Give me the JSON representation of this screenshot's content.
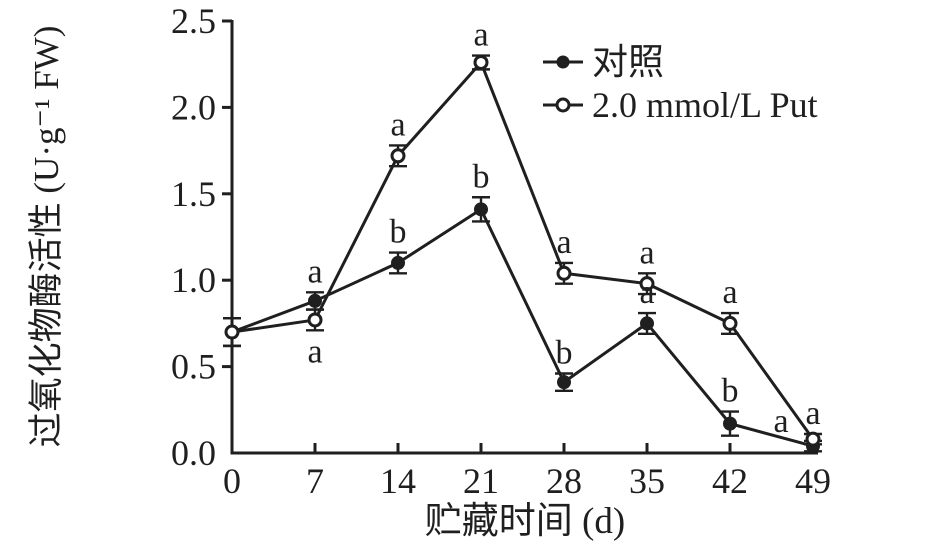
{
  "chart_data": {
    "type": "line",
    "title": "",
    "xlabel": "贮藏时间 (d)",
    "ylabel": "过氧化物酶活性 (U·g⁻¹ FW)",
    "x": [
      0,
      7,
      14,
      21,
      28,
      35,
      42,
      49
    ],
    "xtick_labels": [
      "0",
      "7",
      "14",
      "21",
      "28",
      "35",
      "42",
      "49"
    ],
    "yticks": [
      0.0,
      0.5,
      1.0,
      1.5,
      2.0,
      2.5
    ],
    "ytick_labels": [
      "0.0",
      "0.5",
      "1.0",
      "1.5",
      "2.0",
      "2.5"
    ],
    "ylim": [
      0.0,
      2.5
    ],
    "xlim": [
      0,
      49
    ],
    "grid": false,
    "line_color": "#1f1f1f",
    "background_color": "#ffffff",
    "legend_position": "top-right-inside",
    "series": [
      {
        "name": "对照",
        "marker": "filled-circle",
        "values": [
          0.7,
          0.88,
          1.1,
          1.41,
          0.41,
          0.75,
          0.17,
          0.04
        ],
        "errors": [
          0.08,
          0.05,
          0.06,
          0.07,
          0.05,
          0.06,
          0.07,
          0.03
        ],
        "letters": [
          null,
          {
            "t": "a",
            "pos": "above"
          },
          {
            "t": "b",
            "pos": "above"
          },
          {
            "t": "b",
            "pos": "above"
          },
          {
            "t": "b",
            "pos": "above"
          },
          {
            "t": "a",
            "pos": "above"
          },
          {
            "t": "b",
            "pos": "above"
          },
          {
            "t": "a",
            "pos": "left"
          }
        ]
      },
      {
        "name": "2.0 mmol/L Put",
        "marker": "open-circle",
        "values": [
          0.7,
          0.77,
          1.72,
          2.26,
          1.04,
          0.98,
          0.75,
          0.08
        ],
        "errors": [
          0.08,
          0.06,
          0.06,
          0.04,
          0.06,
          0.06,
          0.06,
          0.03
        ],
        "letters": [
          null,
          {
            "t": "a",
            "pos": "below"
          },
          {
            "t": "a",
            "pos": "above"
          },
          {
            "t": "a",
            "pos": "above"
          },
          {
            "t": "a",
            "pos": "above"
          },
          {
            "t": "a",
            "pos": "above"
          },
          {
            "t": "a",
            "pos": "above"
          },
          {
            "t": "a",
            "pos": "above"
          }
        ]
      }
    ],
    "legend": {
      "items": [
        {
          "label": "对照",
          "marker": "filled-circle"
        },
        {
          "label": "2.0 mmol/L Put",
          "marker": "open-circle"
        }
      ]
    }
  }
}
